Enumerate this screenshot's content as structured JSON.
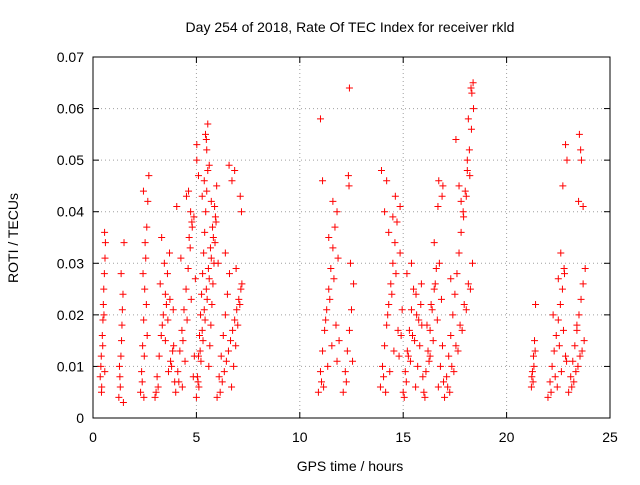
{
  "chart_data": {
    "type": "scatter",
    "title": "Day 254 of 2018, Rate Of TEC Index for receiver rkld",
    "xlabel": "GPS time / hours",
    "ylabel": "ROTI / TECUs",
    "xlim": [
      0,
      25
    ],
    "ylim": [
      0,
      0.07
    ],
    "x_ticks": [
      0,
      5,
      10,
      15,
      20,
      25
    ],
    "x_tick_labels": [
      "0",
      "5",
      "10",
      "15",
      "20",
      "25"
    ],
    "y_ticks": [
      0,
      0.01,
      0.02,
      0.03,
      0.04,
      0.05,
      0.06,
      0.07
    ],
    "y_tick_labels": [
      "0",
      "0.01",
      "0.02",
      "0.03",
      "0.04",
      "0.05",
      "0.06",
      "0.07"
    ],
    "grid": true,
    "marker": "+",
    "color": "#ff0000",
    "series": [
      {
        "name": "ROTI",
        "x": [
          0.35,
          0.4,
          0.45,
          0.5,
          0.55,
          0.6,
          0.38,
          0.48,
          0.52,
          0.58,
          0.42,
          0.47,
          0.53,
          0.56,
          0.41,
          0.57,
          1.25,
          1.3,
          1.35,
          1.4,
          1.45,
          1.5,
          1.32,
          1.38,
          1.42,
          1.28,
          1.47,
          1.36,
          2.3,
          2.35,
          2.4,
          2.45,
          2.5,
          2.55,
          2.6,
          2.65,
          2.7,
          2.38,
          2.48,
          2.58,
          2.42,
          2.52,
          2.44,
          2.46,
          2.62,
          3.0,
          3.1,
          3.2,
          3.3,
          3.4,
          3.5,
          3.6,
          3.7,
          3.8,
          3.9,
          3.15,
          3.35,
          3.55,
          3.75,
          3.25,
          3.45,
          3.65,
          3.85,
          3.05,
          3.95,
          3.32,
          3.62,
          3.88,
          3.5,
          3.72,
          4.0,
          4.1,
          4.2,
          4.3,
          4.4,
          4.5,
          4.6,
          4.7,
          4.8,
          4.9,
          4.15,
          4.35,
          4.55,
          4.75,
          4.95,
          4.25,
          4.45,
          4.65,
          4.85,
          4.05,
          4.62,
          4.78,
          4.52,
          4.88,
          4.32,
          4.72,
          5.0,
          5.05,
          5.1,
          5.15,
          5.2,
          5.25,
          5.3,
          5.35,
          5.4,
          5.45,
          5.5,
          5.55,
          5.6,
          5.65,
          5.7,
          5.75,
          5.8,
          5.85,
          5.9,
          5.95,
          5.12,
          5.22,
          5.32,
          5.42,
          5.52,
          5.62,
          5.72,
          5.82,
          5.92,
          5.08,
          5.18,
          5.28,
          5.38,
          5.48,
          5.58,
          5.68,
          5.78,
          5.88,
          5.98,
          5.02,
          5.44,
          5.55,
          5.5,
          5.38,
          5.62,
          5.28,
          5.72,
          5.02,
          5.1,
          5.48,
          6.0,
          6.1,
          6.2,
          6.3,
          6.4,
          6.5,
          6.6,
          6.7,
          6.8,
          6.9,
          7.0,
          7.1,
          7.2,
          6.15,
          6.35,
          6.55,
          6.75,
          6.95,
          7.15,
          6.25,
          6.45,
          6.65,
          6.85,
          7.05,
          6.58,
          6.72,
          6.85,
          7.12,
          6.05,
          7.18,
          6.4,
          6.92,
          10.9,
          11.0,
          11.1,
          11.2,
          11.3,
          11.4,
          11.5,
          11.6,
          11.7,
          11.8,
          11.9,
          11.05,
          11.25,
          11.45,
          11.65,
          11.85,
          11.15,
          11.35,
          11.55,
          11.75,
          11.0,
          11.6,
          11.8,
          11.4,
          11.1,
          12.1,
          12.2,
          12.3,
          12.4,
          12.5,
          12.6,
          12.35,
          12.45,
          12.25,
          12.55,
          12.4,
          12.38,
          13.9,
          14.0,
          14.1,
          14.2,
          14.3,
          14.4,
          14.5,
          14.6,
          14.7,
          14.8,
          14.9,
          14.05,
          14.25,
          14.45,
          14.65,
          14.85,
          14.15,
          14.35,
          14.55,
          14.75,
          14.95,
          13.95,
          14.2,
          14.62,
          14.85,
          14.3,
          14.1,
          14.5,
          15.0,
          15.1,
          15.2,
          15.3,
          15.4,
          15.5,
          15.6,
          15.7,
          15.8,
          15.9,
          15.15,
          15.35,
          15.55,
          15.75,
          15.95,
          15.25,
          15.45,
          15.65,
          15.85,
          15.05,
          15.4,
          15.18,
          15.62,
          15.88,
          16.0,
          16.1,
          16.2,
          16.3,
          16.4,
          16.5,
          16.6,
          16.7,
          16.8,
          16.9,
          16.15,
          16.35,
          16.55,
          16.75,
          16.95,
          16.25,
          16.45,
          16.65,
          16.85,
          16.05,
          16.72,
          16.88,
          16.5,
          16.92,
          16.3,
          16.68,
          17.0,
          17.1,
          17.2,
          17.3,
          17.4,
          17.5,
          17.6,
          17.7,
          17.8,
          17.9,
          18.0,
          18.1,
          18.2,
          18.3,
          18.4,
          17.15,
          17.35,
          17.55,
          17.75,
          17.95,
          18.15,
          18.35,
          17.25,
          17.45,
          17.65,
          17.85,
          18.05,
          18.25,
          17.55,
          17.8,
          17.92,
          18.1,
          18.22,
          18.28,
          18.32,
          18.38,
          17.7,
          18.05,
          17.3,
          18.15,
          21.2,
          21.25,
          21.3,
          21.35,
          21.4,
          21.28,
          21.32,
          21.38,
          21.22,
          22.0,
          22.1,
          22.2,
          22.3,
          22.4,
          22.5,
          22.6,
          22.7,
          22.8,
          22.9,
          22.15,
          22.35,
          22.55,
          22.75,
          22.25,
          22.45,
          22.65,
          22.85,
          22.62,
          22.78,
          22.85,
          22.72,
          22.92,
          22.5,
          23.0,
          23.1,
          23.2,
          23.3,
          23.4,
          23.5,
          23.6,
          23.7,
          23.8,
          23.15,
          23.35,
          23.55,
          23.75,
          23.25,
          23.45,
          23.65,
          23.52,
          23.58,
          23.62,
          23.48,
          23.7,
          23.4
        ],
        "y": [
          0.008,
          0.012,
          0.016,
          0.022,
          0.028,
          0.034,
          0.01,
          0.019,
          0.025,
          0.031,
          0.006,
          0.014,
          0.02,
          0.036,
          0.005,
          0.009,
          0.004,
          0.008,
          0.012,
          0.018,
          0.024,
          0.034,
          0.006,
          0.015,
          0.021,
          0.01,
          0.003,
          0.028,
          0.005,
          0.009,
          0.014,
          0.019,
          0.025,
          0.031,
          0.037,
          0.042,
          0.047,
          0.007,
          0.012,
          0.022,
          0.028,
          0.034,
          0.044,
          0.004,
          0.016,
          0.004,
          0.008,
          0.012,
          0.016,
          0.02,
          0.024,
          0.028,
          0.032,
          0.01,
          0.014,
          0.006,
          0.018,
          0.022,
          0.011,
          0.026,
          0.03,
          0.009,
          0.013,
          0.005,
          0.007,
          0.035,
          0.019,
          0.021,
          0.015,
          0.023,
          0.005,
          0.009,
          0.013,
          0.017,
          0.021,
          0.025,
          0.029,
          0.033,
          0.037,
          0.012,
          0.007,
          0.015,
          0.019,
          0.023,
          0.027,
          0.031,
          0.011,
          0.035,
          0.008,
          0.041,
          0.044,
          0.038,
          0.043,
          0.039,
          0.006,
          0.04,
          0.004,
          0.008,
          0.012,
          0.016,
          0.02,
          0.024,
          0.028,
          0.032,
          0.036,
          0.04,
          0.044,
          0.048,
          0.01,
          0.014,
          0.018,
          0.022,
          0.026,
          0.03,
          0.034,
          0.038,
          0.006,
          0.011,
          0.015,
          0.019,
          0.023,
          0.027,
          0.031,
          0.035,
          0.039,
          0.007,
          0.013,
          0.017,
          0.021,
          0.025,
          0.029,
          0.033,
          0.037,
          0.041,
          0.045,
          0.05,
          0.055,
          0.057,
          0.052,
          0.046,
          0.049,
          0.043,
          0.042,
          0.053,
          0.047,
          0.054,
          0.004,
          0.008,
          0.012,
          0.016,
          0.02,
          0.024,
          0.028,
          0.006,
          0.01,
          0.014,
          0.018,
          0.022,
          0.026,
          0.005,
          0.009,
          0.013,
          0.017,
          0.021,
          0.025,
          0.007,
          0.011,
          0.015,
          0.019,
          0.023,
          0.049,
          0.046,
          0.048,
          0.043,
          0.03,
          0.04,
          0.032,
          0.029,
          0.005,
          0.009,
          0.013,
          0.017,
          0.021,
          0.025,
          0.029,
          0.033,
          0.037,
          0.011,
          0.015,
          0.007,
          0.019,
          0.023,
          0.027,
          0.031,
          0.006,
          0.01,
          0.014,
          0.018,
          0.058,
          0.042,
          0.04,
          0.035,
          0.046,
          0.005,
          0.009,
          0.013,
          0.017,
          0.021,
          0.026,
          0.047,
          0.03,
          0.007,
          0.011,
          0.064,
          0.045,
          0.006,
          0.01,
          0.014,
          0.018,
          0.022,
          0.026,
          0.03,
          0.034,
          0.038,
          0.012,
          0.016,
          0.008,
          0.02,
          0.024,
          0.028,
          0.032,
          0.005,
          0.009,
          0.013,
          0.017,
          0.021,
          0.048,
          0.046,
          0.043,
          0.041,
          0.036,
          0.04,
          0.039,
          0.005,
          0.009,
          0.013,
          0.017,
          0.021,
          0.025,
          0.006,
          0.01,
          0.014,
          0.018,
          0.007,
          0.011,
          0.015,
          0.019,
          0.008,
          0.012,
          0.016,
          0.02,
          0.022,
          0.004,
          0.03,
          0.028,
          0.024,
          0.026,
          0.005,
          0.009,
          0.013,
          0.017,
          0.021,
          0.025,
          0.029,
          0.006,
          0.01,
          0.014,
          0.018,
          0.022,
          0.026,
          0.03,
          0.007,
          0.011,
          0.015,
          0.019,
          0.023,
          0.004,
          0.046,
          0.043,
          0.034,
          0.045,
          0.012,
          0.041,
          0.004,
          0.008,
          0.012,
          0.016,
          0.02,
          0.024,
          0.028,
          0.032,
          0.036,
          0.04,
          0.044,
          0.048,
          0.052,
          0.056,
          0.06,
          0.006,
          0.01,
          0.014,
          0.018,
          0.022,
          0.026,
          0.03,
          0.005,
          0.009,
          0.013,
          0.017,
          0.021,
          0.025,
          0.054,
          0.042,
          0.039,
          0.05,
          0.047,
          0.064,
          0.063,
          0.065,
          0.045,
          0.043,
          0.027,
          0.058,
          0.006,
          0.009,
          0.012,
          0.015,
          0.022,
          0.007,
          0.01,
          0.013,
          0.008,
          0.004,
          0.007,
          0.01,
          0.013,
          0.016,
          0.019,
          0.022,
          0.025,
          0.028,
          0.011,
          0.005,
          0.008,
          0.014,
          0.017,
          0.02,
          0.006,
          0.009,
          0.012,
          0.032,
          0.029,
          0.053,
          0.045,
          0.05,
          0.027,
          0.005,
          0.008,
          0.011,
          0.014,
          0.017,
          0.02,
          0.023,
          0.026,
          0.029,
          0.006,
          0.009,
          0.012,
          0.015,
          0.007,
          0.01,
          0.013,
          0.055,
          0.052,
          0.05,
          0.042,
          0.041,
          0.018
        ]
      }
    ]
  }
}
